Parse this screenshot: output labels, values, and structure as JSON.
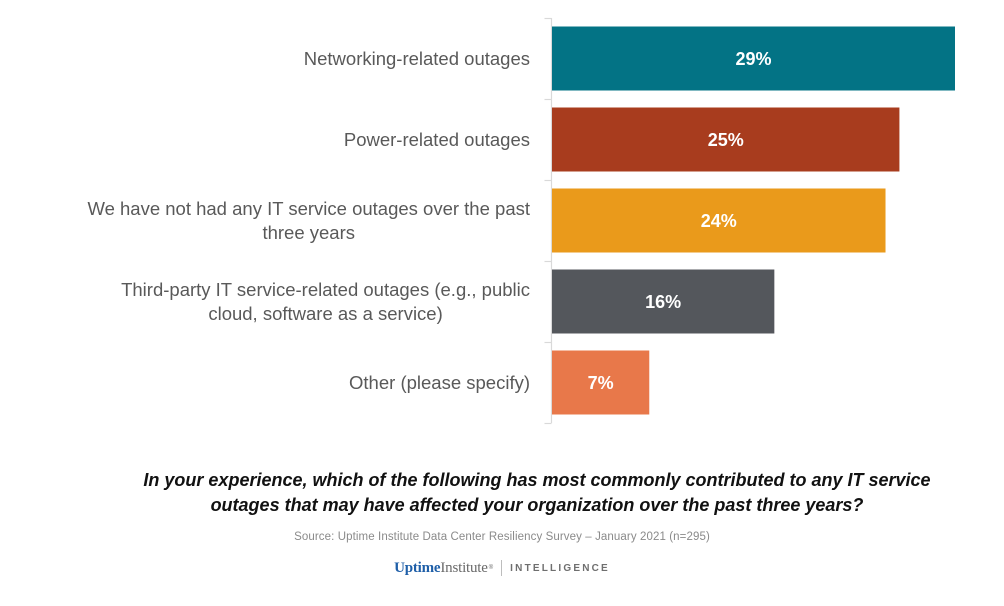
{
  "chart_data": {
    "type": "bar",
    "orientation": "horizontal",
    "categories": [
      "Networking-related outages",
      "Power-related outages",
      "We have not had any IT service outages over the past three years",
      "Third-party IT service-related outages (e.g., public cloud, software as a service)",
      "Other (please specify)"
    ],
    "category_lines": [
      [
        "Networking-related outages"
      ],
      [
        "Power-related outages"
      ],
      [
        "We have not had any IT service outages over the past",
        "three years"
      ],
      [
        "Third-party IT service-related outages (e.g., public",
        "cloud, software as a service)"
      ],
      [
        "Other (please specify)"
      ]
    ],
    "values": [
      29,
      25,
      24,
      16,
      7
    ],
    "value_labels": [
      "29%",
      "25%",
      "24%",
      "16%",
      "7%"
    ],
    "colors": [
      "#037385",
      "#a83c1e",
      "#ea9a1b",
      "#54575c",
      "#e8784a"
    ],
    "xlim": [
      0,
      29
    ],
    "grid": false,
    "legend": "none",
    "title": "",
    "xlabel": "",
    "ylabel": "",
    "axis_color": "#d9d9d9",
    "label_color": "#595959",
    "value_label_color": "#ffffff"
  },
  "question": {
    "line1": "In your experience, which of the following has most commonly contributed to any IT service",
    "line2": "outages that may have affected your organization over the past three years?"
  },
  "source": "Source: Uptime Institute Data Center Resiliency Survey – January 2021 (n=295)",
  "logo": {
    "brand_part1": "Uptime",
    "brand_part2": "Institute",
    "registered": "®",
    "division": "INTELLIGENCE"
  }
}
